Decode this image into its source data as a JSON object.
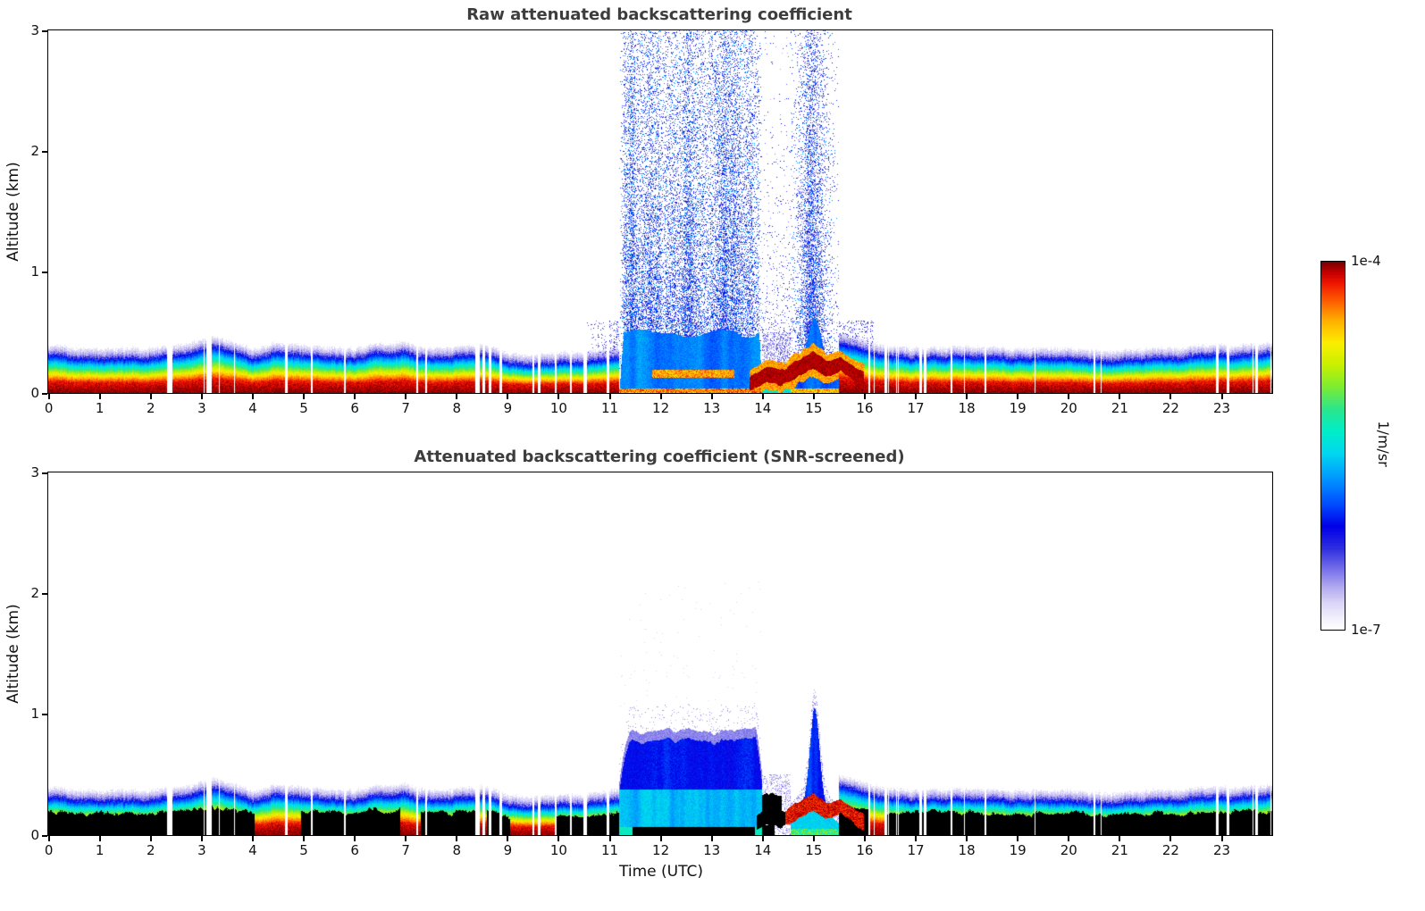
{
  "figure": {
    "background": "#ffffff"
  },
  "panel1": {
    "title": "Raw attenuated backscattering coefficient"
  },
  "panel2": {
    "title": "Attenuated backscattering coefficient (SNR-screened)"
  },
  "axis": {
    "x_label": "Time (UTC)",
    "y_label": "Altitude (km)",
    "x_ticks": [
      "0",
      "1",
      "2",
      "3",
      "4",
      "5",
      "6",
      "7",
      "8",
      "9",
      "10",
      "11",
      "12",
      "13",
      "14",
      "15",
      "16",
      "17",
      "18",
      "19",
      "20",
      "21",
      "22",
      "23"
    ],
    "y_ticks": [
      "3",
      "2",
      "1",
      "0"
    ]
  },
  "colorbar": {
    "max_label": "1e-4",
    "min_label": "1e-7",
    "unit": "1/m/sr"
  },
  "chart_data": {
    "type": "heatmap",
    "panel_titles": [
      "Raw attenuated backscattering coefficient",
      "Attenuated backscattering coefficient (SNR-screened)"
    ],
    "xlabel": "Time (UTC)",
    "ylabel": "Altitude (km)",
    "x_range_hours": [
      0,
      24
    ],
    "y_range_km": [
      0,
      3
    ],
    "value_scale": "log",
    "value_min": "1e-7",
    "value_max": "1e-4",
    "units": "1/m/sr",
    "colormap_stops": [
      [
        0.0,
        "#ffffff"
      ],
      [
        0.03,
        "#f2f0fc"
      ],
      [
        0.07,
        "#dcd6f7"
      ],
      [
        0.11,
        "#b7aff0"
      ],
      [
        0.16,
        "#7b74ea"
      ],
      [
        0.22,
        "#2e2ee0"
      ],
      [
        0.28,
        "#0000e8"
      ],
      [
        0.34,
        "#004cff"
      ],
      [
        0.41,
        "#0096ff"
      ],
      [
        0.48,
        "#00d8f0"
      ],
      [
        0.54,
        "#00eec8"
      ],
      [
        0.6,
        "#2ce68c"
      ],
      [
        0.66,
        "#7dec32"
      ],
      [
        0.72,
        "#c8f000"
      ],
      [
        0.78,
        "#fcee00"
      ],
      [
        0.84,
        "#ffb000"
      ],
      [
        0.89,
        "#ff6400"
      ],
      [
        0.94,
        "#f01800"
      ],
      [
        0.97,
        "#c80000"
      ],
      [
        1.0,
        "#7a0000"
      ]
    ],
    "boundary_layer_top_km": [
      [
        0,
        0.3
      ],
      [
        1,
        0.27
      ],
      [
        2,
        0.28
      ],
      [
        2.9,
        0.33
      ],
      [
        3.2,
        0.37
      ],
      [
        3.6,
        0.33
      ],
      [
        4,
        0.27
      ],
      [
        4.5,
        0.33
      ],
      [
        5,
        0.3
      ],
      [
        5.5,
        0.28
      ],
      [
        6,
        0.28
      ],
      [
        6.5,
        0.31
      ],
      [
        7,
        0.32
      ],
      [
        7.5,
        0.27
      ],
      [
        8,
        0.3
      ],
      [
        8.5,
        0.32
      ],
      [
        9,
        0.24
      ],
      [
        9.5,
        0.22
      ],
      [
        10,
        0.24
      ],
      [
        10.5,
        0.25
      ],
      [
        11,
        0.28
      ],
      [
        11.2,
        0.3
      ],
      [
        14,
        0.3
      ],
      [
        14.5,
        0.34
      ],
      [
        15,
        0.38
      ],
      [
        15.5,
        0.4
      ],
      [
        16,
        0.34
      ],
      [
        16.5,
        0.3
      ],
      [
        17,
        0.28
      ],
      [
        18,
        0.3
      ],
      [
        19,
        0.28
      ],
      [
        20,
        0.27
      ],
      [
        21,
        0.26
      ],
      [
        22,
        0.28
      ],
      [
        23,
        0.3
      ],
      [
        24,
        0.32
      ]
    ],
    "rain_event_1": {
      "start": 11.2,
      "end": 14.0,
      "raw_top_km": 3.0,
      "screened_top_km": 0.9,
      "core_top_km": 0.5
    },
    "rain_event_2": {
      "start": 14.55,
      "end": 15.5,
      "raw_top_km": 3.0,
      "screened_top_km": 0.8,
      "center_utc": 15.0
    },
    "elevated_layer": {
      "start": 13.75,
      "end": 16.0,
      "thickness_km": 0.055,
      "base_km": [
        [
          13.75,
          0.07
        ],
        [
          14.1,
          0.16
        ],
        [
          14.35,
          0.12
        ],
        [
          14.7,
          0.2
        ],
        [
          15.0,
          0.27
        ],
        [
          15.25,
          0.2
        ],
        [
          15.55,
          0.24
        ],
        [
          15.8,
          0.16
        ],
        [
          16.0,
          0.1
        ]
      ]
    },
    "embedded_streak": {
      "start": 11.85,
      "end": 13.45,
      "alt_km": 0.16
    },
    "pre_rain_haze": {
      "start": 10.5,
      "end": 11.2,
      "top_km": 0.55
    },
    "post_rain_haze": {
      "start": 15.5,
      "end": 16.2,
      "top_km": 0.6
    },
    "missing_profile_segments": [
      [
        0.25,
        0.55,
        0.1
      ],
      [
        2.3,
        4.0,
        0.22
      ],
      [
        4.3,
        5.2,
        0.1
      ],
      [
        5.6,
        6.3,
        0.08
      ],
      [
        6.9,
        7.5,
        0.12
      ],
      [
        8.3,
        9.7,
        0.28
      ],
      [
        9.9,
        11.15,
        0.15
      ],
      [
        13.9,
        14.05,
        0.1
      ],
      [
        16.05,
        17.2,
        0.3
      ],
      [
        17.4,
        18.4,
        0.08
      ],
      [
        19.0,
        19.6,
        0.06
      ],
      [
        20.2,
        20.7,
        0.06
      ],
      [
        21.1,
        21.5,
        0.05
      ],
      [
        22.85,
        23.6,
        0.32
      ],
      [
        23.6,
        24.0,
        0.12
      ]
    ],
    "screened_black_segments": [
      [
        0,
        4.05
      ],
      [
        4.95,
        6.9
      ],
      [
        7.3,
        8.4
      ],
      [
        8.6,
        9.05
      ],
      [
        9.95,
        11.2
      ],
      [
        15.5,
        16.1
      ],
      [
        16.4,
        24
      ]
    ],
    "screened_rain_surface_black": [
      11.45,
      13.85
    ]
  }
}
